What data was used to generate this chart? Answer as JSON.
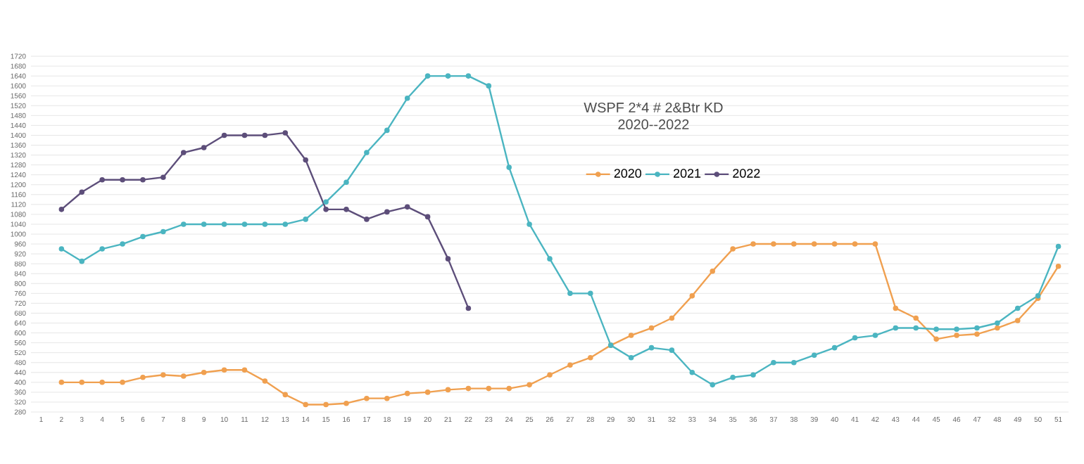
{
  "chart_data": {
    "type": "line",
    "title": "WSPF 2*4 # 2&Btr KD",
    "subtitle": "2020--2022",
    "categories": [
      "1",
      "2",
      "3",
      "4",
      "5",
      "6",
      "7",
      "8",
      "9",
      "10",
      "11",
      "12",
      "13",
      "14",
      "15",
      "16",
      "17",
      "18",
      "19",
      "20",
      "21",
      "22",
      "23",
      "24",
      "25",
      "26",
      "27",
      "28",
      "29",
      "30",
      "31",
      "32",
      "33",
      "34",
      "35",
      "36",
      "37",
      "38",
      "39",
      "40",
      "41",
      "42",
      "43",
      "44",
      "45",
      "46",
      "47",
      "48",
      "49",
      "50",
      "51"
    ],
    "ylim": [
      280,
      1720
    ],
    "yticks": [
      280,
      320,
      360,
      400,
      440,
      480,
      520,
      560,
      600,
      640,
      680,
      720,
      760,
      800,
      840,
      880,
      920,
      960,
      1000,
      1040,
      1080,
      1120,
      1160,
      1200,
      1240,
      1280,
      1320,
      1360,
      1400,
      1440,
      1480,
      1520,
      1560,
      1600,
      1640,
      1680,
      1720
    ],
    "grid": "y",
    "legend": "top",
    "marker": "circle",
    "line_style": "solid",
    "series": [
      {
        "name": "2020",
        "color": "#f0a050",
        "values": [
          null,
          400,
          400,
          400,
          400,
          420,
          430,
          425,
          440,
          450,
          450,
          405,
          350,
          310,
          310,
          315,
          335,
          335,
          355,
          360,
          370,
          375,
          375,
          375,
          390,
          430,
          470,
          500,
          550,
          590,
          620,
          660,
          750,
          850,
          940,
          960,
          960,
          960,
          960,
          960,
          960,
          960,
          700,
          660,
          575,
          590,
          595,
          620,
          650,
          740,
          870
        ]
      },
      {
        "name": "2021",
        "color": "#4bb5c1",
        "values": [
          null,
          940,
          890,
          940,
          960,
          990,
          1010,
          1040,
          1040,
          1040,
          1040,
          1040,
          1040,
          1060,
          1130,
          1210,
          1330,
          1420,
          1550,
          1640,
          1640,
          1640,
          1600,
          1270,
          1040,
          900,
          760,
          760,
          550,
          500,
          540,
          530,
          440,
          390,
          420,
          430,
          480,
          480,
          510,
          540,
          580,
          590,
          620,
          620,
          615,
          615,
          620,
          640,
          700,
          750,
          950
        ]
      },
      {
        "name": "2022",
        "color": "#5d4e7a",
        "values": [
          null,
          1100,
          1170,
          1220,
          1220,
          1220,
          1230,
          1330,
          1350,
          1400,
          1400,
          1400,
          1410,
          1300,
          1100,
          1100,
          1060,
          1090,
          1110,
          1070,
          900,
          700,
          null,
          null,
          null,
          null,
          null,
          null,
          null,
          null,
          null,
          null,
          null,
          null,
          null,
          null,
          null,
          null,
          null,
          null,
          null,
          null,
          null,
          null,
          null,
          null,
          null,
          null,
          null,
          null,
          null
        ]
      }
    ]
  }
}
